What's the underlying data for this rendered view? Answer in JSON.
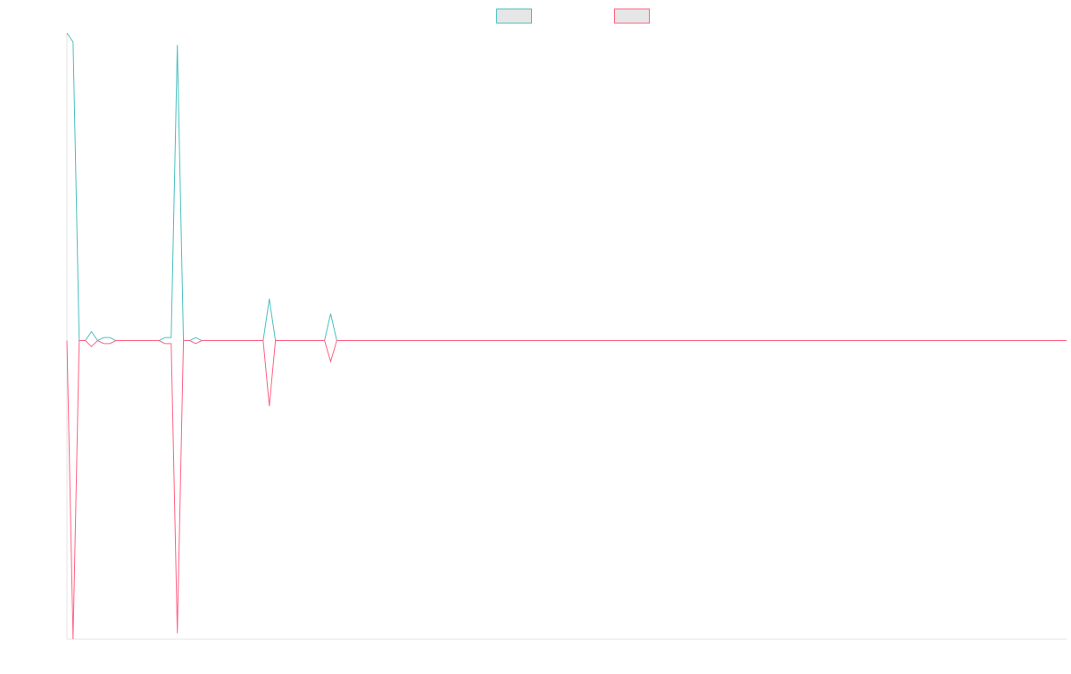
{
  "chart_data": {
    "type": "line",
    "title": "",
    "xlabel": "",
    "ylabel": "",
    "x": [
      0,
      1,
      2,
      3,
      4,
      5,
      6,
      7,
      8,
      9,
      10,
      11,
      12,
      13,
      14,
      15,
      16,
      17,
      18,
      19,
      20,
      21,
      22,
      23,
      24,
      25,
      26,
      27,
      28,
      29,
      30,
      31,
      32,
      33,
      34,
      35,
      36,
      37,
      38,
      39,
      40,
      41,
      42,
      43,
      44,
      45,
      46,
      47,
      48,
      49,
      50,
      51,
      52,
      53,
      54,
      55,
      56,
      57,
      58,
      59,
      60,
      61,
      62,
      63,
      64,
      65,
      66,
      67,
      68,
      69,
      70,
      71,
      72,
      73,
      74,
      75,
      76,
      77,
      78,
      79,
      80,
      81,
      82,
      83,
      84,
      85,
      86,
      87,
      88,
      89,
      90,
      91,
      92,
      93,
      94,
      95,
      96,
      97,
      98,
      99,
      100,
      101,
      102,
      103,
      104,
      105,
      106,
      107,
      108,
      109,
      110,
      111,
      112,
      113,
      114,
      115,
      116,
      117,
      118,
      119,
      120,
      121,
      122,
      123,
      124,
      125,
      126,
      127,
      128,
      129,
      130,
      131,
      132,
      133,
      134,
      135,
      136,
      137,
      138,
      139,
      140,
      141,
      142,
      143,
      144,
      145,
      146,
      147,
      148,
      149,
      150,
      151,
      152,
      153,
      154,
      155,
      156,
      157,
      158,
      159,
      160,
      161,
      162,
      163
    ],
    "ylim": [
      -1.0,
      1.03
    ],
    "grid": false,
    "legend_position": "top-center",
    "series": [
      {
        "color": "#4bc0c0",
        "fill": "#e6e6e6",
        "values": [
          1.03,
          1.0,
          0.0,
          0.0,
          0.03,
          0.0,
          0.01,
          0.01,
          0.0,
          0.0,
          0.0,
          0.0,
          0.0,
          0.0,
          0.0,
          0.0,
          0.01,
          0.01,
          0.99,
          0.0,
          0.0,
          0.01,
          0.0,
          0.0,
          0.0,
          0.0,
          0.0,
          0.0,
          0.0,
          0.0,
          0.0,
          0.0,
          0.0,
          0.14,
          0.0,
          0.0,
          0.0,
          0.0,
          0.0,
          0.0,
          0.0,
          0.0,
          0.0,
          0.09,
          0.0,
          0.0,
          0.0,
          0.0,
          0.0,
          0.0,
          0.0,
          0.0,
          0.0,
          0.0,
          0.0,
          0.0,
          0.0,
          0.0,
          0.0,
          0.0,
          0.0,
          0.0,
          0.0,
          0.0,
          0.0,
          0.0,
          0.0,
          0.0,
          0.0,
          0.0,
          0.0,
          0.0,
          0.0,
          0.0,
          0.0,
          0.0,
          0.0,
          0.0,
          0.0,
          0.0,
          0.0,
          0.0,
          0.0,
          0.0,
          0.0,
          0.0,
          0.0,
          0.0,
          0.0,
          0.0,
          0.0,
          0.0,
          0.0,
          0.0,
          0.0,
          0.0,
          0.0,
          0.0,
          0.0,
          0.0,
          0.0,
          0.0,
          0.0,
          0.0,
          0.0,
          0.0,
          0.0,
          0.0,
          0.0,
          0.0,
          0.0,
          0.0,
          0.0,
          0.0,
          0.0,
          0.0,
          0.0,
          0.0,
          0.0,
          0.0,
          0.0,
          0.0,
          0.0,
          0.0,
          0.0,
          0.0,
          0.0,
          0.0,
          0.0,
          0.0,
          0.0,
          0.0,
          0.0,
          0.0,
          0.0,
          0.0,
          0.0,
          0.0,
          0.0,
          0.0,
          0.0,
          0.0,
          0.0,
          0.0,
          0.0,
          0.0,
          0.0,
          0.0,
          0.0,
          0.0,
          0.0,
          0.0,
          0.0,
          0.0,
          0.0,
          0.0,
          0.0,
          0.0,
          0.0,
          0.0,
          0.0,
          0.0,
          0.0,
          0.0
        ]
      },
      {
        "color": "#ff6384",
        "fill": "#e6e6e6",
        "values": [
          0.0,
          -1.0,
          0.0,
          0.0,
          -0.02,
          0.0,
          -0.01,
          -0.01,
          0.0,
          0.0,
          0.0,
          0.0,
          0.0,
          0.0,
          0.0,
          0.0,
          -0.01,
          -0.01,
          -0.98,
          0.0,
          0.0,
          -0.01,
          0.0,
          0.0,
          0.0,
          0.0,
          0.0,
          0.0,
          0.0,
          0.0,
          0.0,
          0.0,
          0.0,
          -0.22,
          0.0,
          0.0,
          0.0,
          0.0,
          0.0,
          0.0,
          0.0,
          0.0,
          0.0,
          -0.07,
          0.0,
          0.0,
          0.0,
          0.0,
          0.0,
          0.0,
          0.0,
          0.0,
          0.0,
          0.0,
          0.0,
          0.0,
          0.0,
          0.0,
          0.0,
          0.0,
          0.0,
          0.0,
          0.0,
          0.0,
          0.0,
          0.0,
          0.0,
          0.0,
          0.0,
          0.0,
          0.0,
          0.0,
          0.0,
          0.0,
          0.0,
          0.0,
          0.0,
          0.0,
          0.0,
          0.0,
          0.0,
          0.0,
          0.0,
          0.0,
          0.0,
          0.0,
          0.0,
          0.0,
          0.0,
          0.0,
          0.0,
          0.0,
          0.0,
          0.0,
          0.0,
          0.0,
          0.0,
          0.0,
          0.0,
          0.0,
          0.0,
          0.0,
          0.0,
          0.0,
          0.0,
          0.0,
          0.0,
          0.0,
          0.0,
          0.0,
          0.0,
          0.0,
          0.0,
          0.0,
          0.0,
          0.0,
          0.0,
          0.0,
          0.0,
          0.0,
          0.0,
          0.0,
          0.0,
          0.0,
          0.0,
          0.0,
          0.0,
          0.0,
          0.0,
          0.0,
          0.0,
          0.0,
          0.0,
          0.0,
          0.0,
          0.0,
          0.0,
          0.0,
          0.0,
          0.0,
          0.0,
          0.0,
          0.0,
          0.0,
          0.0,
          0.0,
          0.0,
          0.0,
          0.0,
          0.0,
          0.0,
          0.0,
          0.0,
          0.0,
          0.0,
          0.0,
          0.0,
          0.0,
          0.0,
          0.0,
          0.0,
          0.0,
          0.0,
          0.0
        ]
      }
    ]
  }
}
